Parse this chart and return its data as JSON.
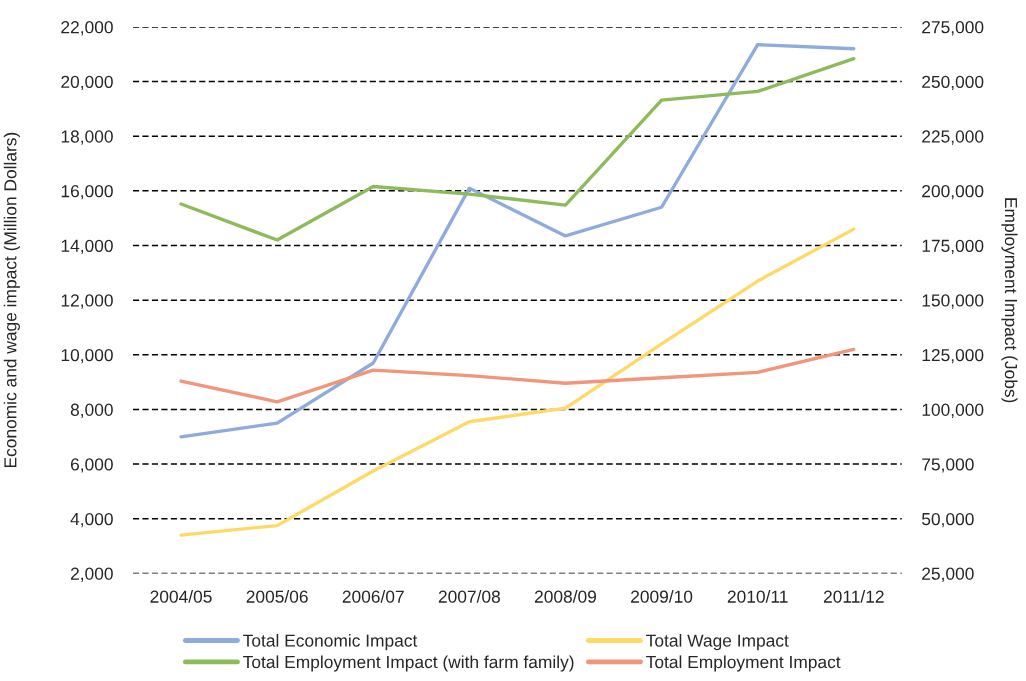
{
  "chart_data": {
    "type": "line",
    "ylabel": "Economic and wage impact (Million Dollars)",
    "y2label": "Employment Impact (Jobs)",
    "categories": [
      "2004/05",
      "2005/06",
      "2006/07",
      "2007/08",
      "2008/09",
      "2009/10",
      "2010/11",
      "2011/12"
    ],
    "series": [
      {
        "name": "Total Economic Impact",
        "color": "#8faadc",
        "values": [
          7000,
          7500,
          9700,
          16100,
          14350,
          15400,
          21350,
          21200
        ]
      },
      {
        "name": "Total Wage Impact",
        "color": "#ffd966",
        "values": [
          3400,
          3750,
          5750,
          7550,
          8050,
          10400,
          12700,
          14600
        ]
      },
      {
        "name": "Total Employment Impact (with farm family)",
        "color": "#8dbb5b",
        "axis": "y2",
        "values": [
          194000,
          177500,
          202000,
          198500,
          193500,
          241500,
          245500,
          260500
        ]
      },
      {
        "name": "Total Employment Impact",
        "color": "#f1957c",
        "axis": "y2",
        "values": [
          113000,
          103500,
          118000,
          115500,
          112000,
          114500,
          117000,
          127500
        ]
      }
    ],
    "ylim": [
      2000,
      22000
    ],
    "yticks": [
      {
        "value": 2000,
        "label": "2,000"
      },
      {
        "value": 4000,
        "label": "4,000"
      },
      {
        "value": 6000,
        "label": "6,000"
      },
      {
        "value": 8000,
        "label": "8,000"
      },
      {
        "value": 10000,
        "label": "10,000"
      },
      {
        "value": 12000,
        "label": "12,000"
      },
      {
        "value": 14000,
        "label": "14,000"
      },
      {
        "value": 16000,
        "label": "16,000"
      },
      {
        "value": 18000,
        "label": "18,000"
      },
      {
        "value": 20000,
        "label": "20,000"
      },
      {
        "value": 22000,
        "label": "22,000"
      }
    ],
    "y2lim": [
      25000,
      275000
    ],
    "y2ticks": [
      {
        "value": 25000,
        "label": "25,000"
      },
      {
        "value": 50000,
        "label": "50,000"
      },
      {
        "value": 75000,
        "label": "75,000"
      },
      {
        "value": 100000,
        "label": "100,000"
      },
      {
        "value": 125000,
        "label": "125,000"
      },
      {
        "value": 150000,
        "label": "150,000"
      },
      {
        "value": 175000,
        "label": "175,000"
      },
      {
        "value": 200000,
        "label": "200,000"
      },
      {
        "value": 225000,
        "label": "225,000"
      },
      {
        "value": 250000,
        "label": "250,000"
      },
      {
        "value": 275000,
        "label": "275,000"
      }
    ],
    "grid": "y",
    "legend": "bottom"
  }
}
